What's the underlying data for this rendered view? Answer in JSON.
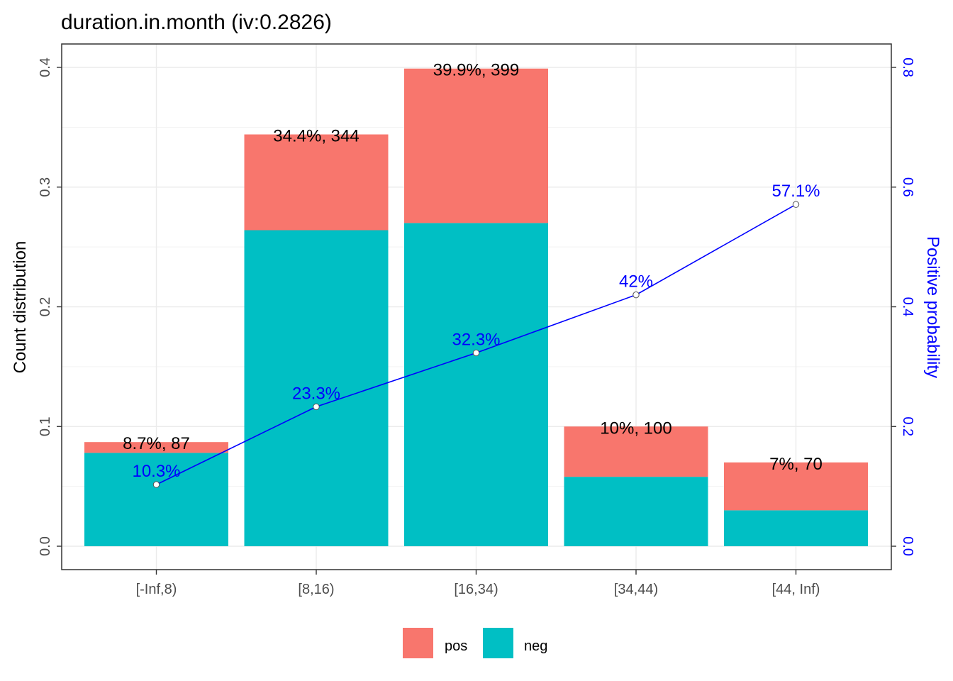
{
  "chart_data": {
    "type": "bar",
    "title": "duration.in.month  (iv:0.2826)",
    "ylabel": "Count distribution",
    "ylabel_right": "Positive probability",
    "ylim": [
      0,
      0.4
    ],
    "ylim_right": [
      0,
      0.8
    ],
    "yticks": [
      "0.0",
      "0.1",
      "0.2",
      "0.3",
      "0.4"
    ],
    "yticks_right": [
      "0.0",
      "0.2",
      "0.4",
      "0.6",
      "0.8"
    ],
    "categories": [
      "[-Inf,8)",
      "[8,16)",
      "[16,34)",
      "[34,44)",
      "[44, Inf)"
    ],
    "stacked": true,
    "grid": true,
    "legend_position": "bottom",
    "series": [
      {
        "name": "neg",
        "color": "#00BFC4",
        "values": [
          0.078,
          0.264,
          0.27,
          0.058,
          0.03
        ]
      },
      {
        "name": "pos",
        "color": "#F8766D",
        "values": [
          0.009,
          0.08,
          0.129,
          0.042,
          0.04
        ]
      }
    ],
    "totals": [
      0.087,
      0.344,
      0.399,
      0.1,
      0.07
    ],
    "bar_labels": [
      "8.7%, 87",
      "34.4%, 344",
      "39.9%, 399",
      "10%, 100",
      "7%, 70"
    ],
    "positive_probability": {
      "values": [
        0.103,
        0.233,
        0.323,
        0.42,
        0.571
      ],
      "labels": [
        "10.3%",
        "23.3%",
        "32.3%",
        "42%",
        "57.1%"
      ],
      "color": "#0000FF"
    },
    "legend": [
      {
        "name": "pos",
        "color": "#F8766D"
      },
      {
        "name": "neg",
        "color": "#00BFC4"
      }
    ]
  }
}
